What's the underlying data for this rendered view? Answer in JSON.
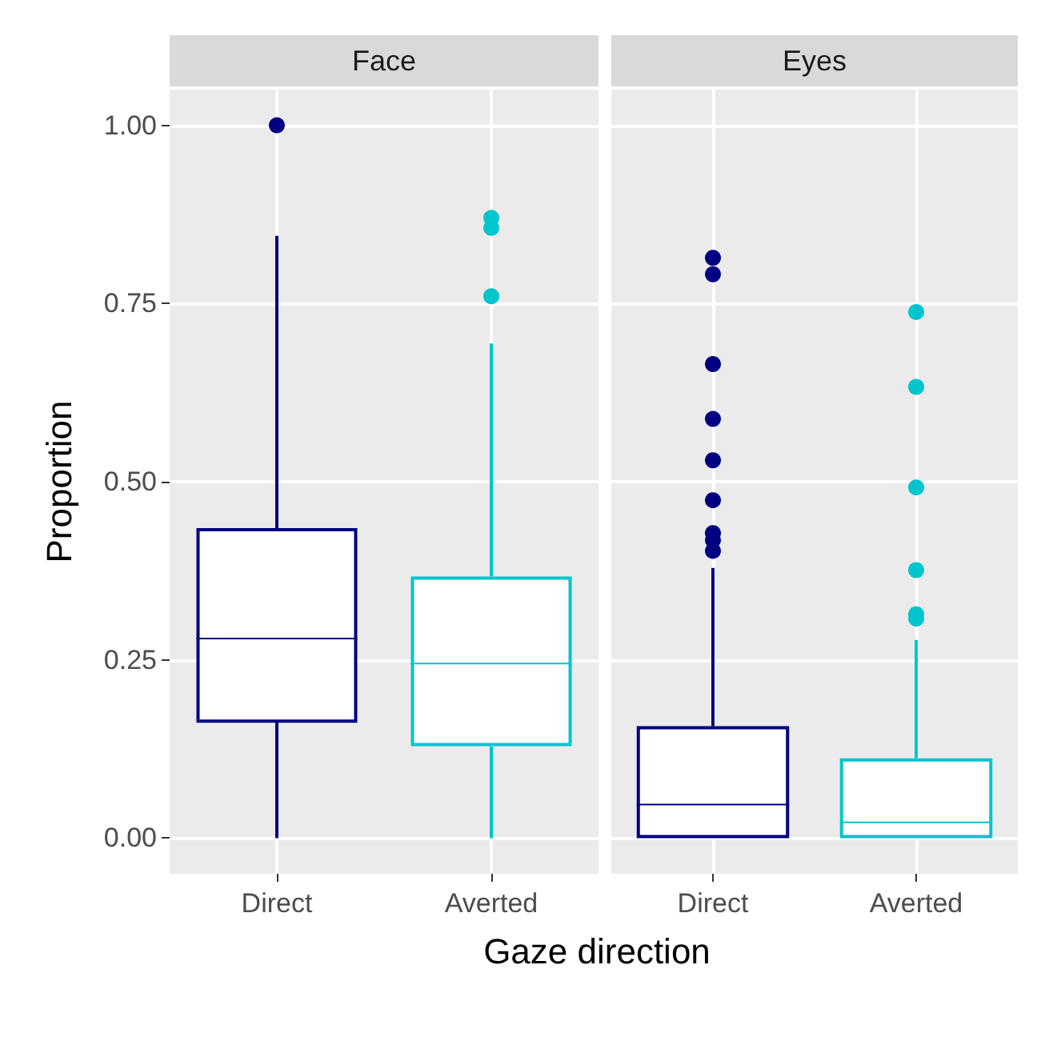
{
  "chart_data": [
    {
      "type": "box",
      "title": "Face",
      "ylabel": "Proportion",
      "xlabel": "Gaze direction",
      "categories": [
        "Direct",
        "Averted"
      ],
      "colors": [
        "#000080",
        "#00c5cd"
      ],
      "boxes": [
        {
          "low": 0,
          "q1": 0.162,
          "median": 0.28,
          "q3": 0.435,
          "high": 0.845,
          "outliers": [
            1.0
          ]
        },
        {
          "low": 0,
          "q1": 0.129,
          "median": 0.245,
          "q3": 0.367,
          "high": 0.694,
          "outliers": [
            0.87,
            0.856,
            0.76
          ]
        }
      ],
      "ylim": [
        -0.05,
        1.05
      ],
      "yticks": [
        {
          "value": 0,
          "label": "0.00"
        },
        {
          "value": 0.25,
          "label": "0.25"
        },
        {
          "value": 0.5,
          "label": "0.50"
        },
        {
          "value": 0.75,
          "label": "0.75"
        },
        {
          "value": 1,
          "label": "1.00"
        }
      ],
      "grid": true
    },
    {
      "type": "box",
      "title": "Eyes",
      "categories": [
        "Direct",
        "Averted"
      ],
      "colors": [
        "#000080",
        "#00c5cd"
      ],
      "boxes": [
        {
          "low": 0,
          "q1": 0,
          "median": 0.047,
          "q3": 0.157,
          "high": 0.379,
          "outliers": [
            0.814,
            0.791,
            0.665,
            0.588,
            0.53,
            0.474,
            0.428,
            0.418,
            0.403
          ]
        },
        {
          "low": 0,
          "q1": 0,
          "median": 0.022,
          "q3": 0.112,
          "high": 0.278,
          "outliers": [
            0.738,
            0.633,
            0.492,
            0.376,
            0.314,
            0.308
          ]
        }
      ],
      "ylim": [
        -0.05,
        1.05
      ],
      "yticks": [
        0,
        0.25,
        0.5,
        0.75,
        1
      ],
      "grid": true,
      "tick_labels": "x"
    }
  ]
}
